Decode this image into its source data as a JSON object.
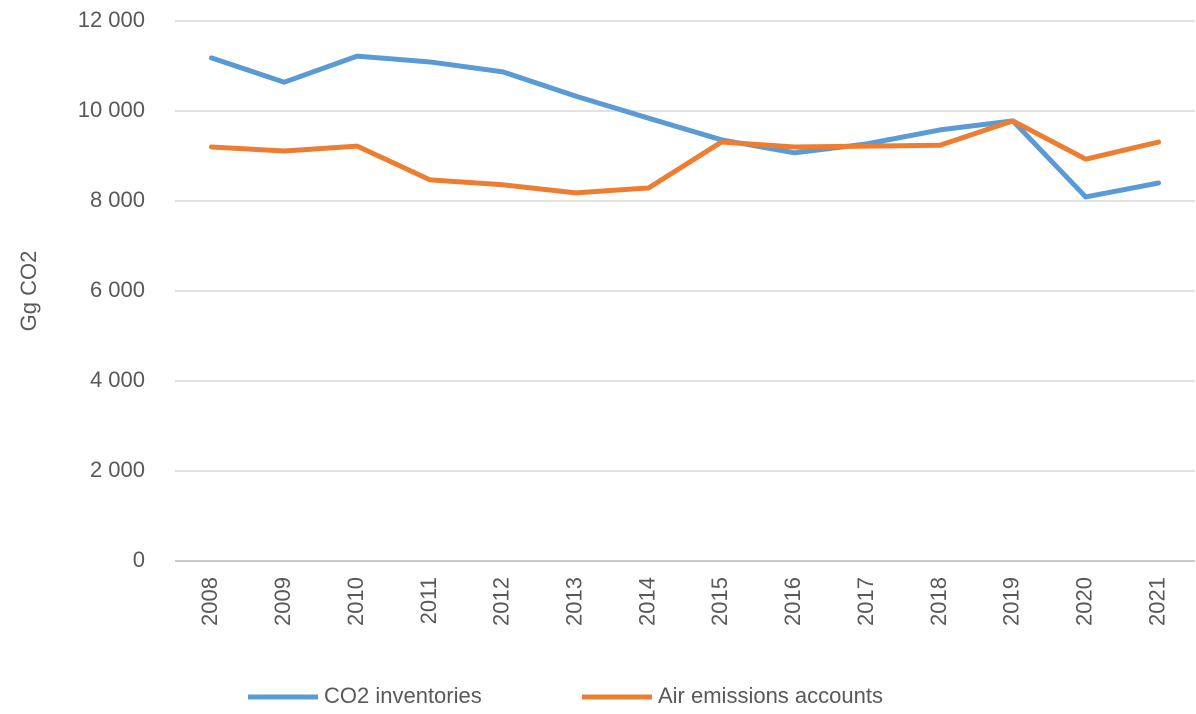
{
  "chart_data": {
    "type": "line",
    "y_label": "Gg CO2",
    "categories": [
      "2008",
      "2009",
      "2010",
      "2011",
      "2012",
      "2013",
      "2014",
      "2015",
      "2016",
      "2017",
      "2018",
      "2019",
      "2020",
      "2021"
    ],
    "series": [
      {
        "name": "CO2 inventories",
        "color": "#5b9bd5",
        "values": [
          11180,
          10640,
          11220,
          11090,
          10870,
          10330,
          9840,
          9360,
          9070,
          9270,
          9580,
          9780,
          8090,
          8400
        ]
      },
      {
        "name": "Air emissions accounts",
        "color": "#ed7d31",
        "values": [
          9200,
          9110,
          9220,
          8470,
          8360,
          8180,
          8290,
          9310,
          9200,
          9220,
          9240,
          9780,
          8930,
          9310
        ]
      }
    ],
    "ylim": [
      0,
      12000
    ],
    "yticks": [
      0,
      {
        "value": 2000,
        "label": "2 000"
      },
      {
        "value": 4000,
        "label": "4 000"
      },
      {
        "value": 6000,
        "label": "6 000"
      },
      {
        "value": 8000,
        "label": "8 000"
      },
      {
        "value": 10000,
        "label": "10 000"
      },
      {
        "value": 12000,
        "label": "12 000"
      }
    ],
    "grid": true,
    "legend": "bottom"
  }
}
